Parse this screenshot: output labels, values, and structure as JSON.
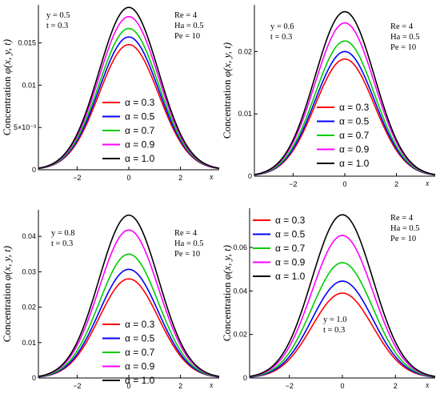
{
  "chart_data": [
    {
      "type": "line",
      "ylabel_text": "Concentration",
      "ylabel_func": "φ(x, y, t)",
      "xlabel": "x",
      "xlim": [
        -3.5,
        3.5
      ],
      "ylim": [
        0,
        0.0195
      ],
      "xticks": [
        -2,
        0,
        2
      ],
      "xtick_labels": [
        "−2",
        "0",
        "2"
      ],
      "yticks": [
        0,
        0.005,
        0.01,
        0.015
      ],
      "ytick_labels": [
        "0",
        "5×10⁻³",
        "0.01",
        "0.015"
      ],
      "params_left": [
        "y = 0.5",
        "t = 0.3"
      ],
      "params_right": [
        "Re = 4",
        "Ha = 0.5",
        "Pe = 10"
      ],
      "legend_position": "lower-center",
      "series": [
        {
          "name": "α = 0.3",
          "peak": 0.0148,
          "color": "#ff0000"
        },
        {
          "name": "α = 0.5",
          "peak": 0.0157,
          "color": "#0000ff"
        },
        {
          "name": "α = 0.7",
          "peak": 0.0167,
          "color": "#00cc00"
        },
        {
          "name": "α = 0.9",
          "peak": 0.0181,
          "color": "#ff00ff"
        },
        {
          "name": "α = 1.0",
          "peak": 0.0192,
          "color": "#000000"
        }
      ]
    },
    {
      "type": "line",
      "ylabel_text": "Concentration",
      "ylabel_func": "φ(x, y, t)",
      "xlabel": "x",
      "xlim": [
        -3.5,
        3.5
      ],
      "ylim": [
        0,
        0.0275
      ],
      "xticks": [
        -2,
        0,
        2
      ],
      "xtick_labels": [
        "−2",
        "0",
        "2"
      ],
      "yticks": [
        0,
        0.01,
        0.02
      ],
      "ytick_labels": [
        "0",
        "0.01",
        "0.02"
      ],
      "params_left": [
        "y = 0.6",
        "t = 0.3"
      ],
      "params_right": [
        "Re = 4",
        "Ha = 0.5",
        "Pe = 10"
      ],
      "legend_position": "lower-center",
      "series": [
        {
          "name": "α = 0.3",
          "peak": 0.0188,
          "color": "#ff0000"
        },
        {
          "name": "α = 0.5",
          "peak": 0.02,
          "color": "#0000ff"
        },
        {
          "name": "α = 0.7",
          "peak": 0.0217,
          "color": "#00cc00"
        },
        {
          "name": "α = 0.9",
          "peak": 0.0246,
          "color": "#ff00ff"
        },
        {
          "name": "α = 1.0",
          "peak": 0.0264,
          "color": "#000000"
        }
      ]
    },
    {
      "type": "line",
      "ylabel_text": "Concentration",
      "ylabel_func": "φ(x, y, t)",
      "xlabel": "x",
      "xlim": [
        -3.5,
        3.5
      ],
      "ylim": [
        0,
        0.0475
      ],
      "xticks": [
        -2,
        0,
        2
      ],
      "xtick_labels": [
        "−2",
        "0",
        "2"
      ],
      "yticks": [
        0,
        0.01,
        0.02,
        0.03,
        0.04
      ],
      "ytick_labels": [
        "0",
        "0.01",
        "0.02",
        "0.03",
        "0.04"
      ],
      "params_left": [
        "y = 0.8",
        "t = 0.3"
      ],
      "params_right": [
        "Re = 4",
        "Ha = 0.5",
        "Pe = 10"
      ],
      "legend_position": "lower-center",
      "series": [
        {
          "name": "α = 0.3",
          "peak": 0.028,
          "color": "#ff0000"
        },
        {
          "name": "α = 0.5",
          "peak": 0.0307,
          "color": "#0000ff"
        },
        {
          "name": "α = 0.7",
          "peak": 0.035,
          "color": "#00cc00"
        },
        {
          "name": "α = 0.9",
          "peak": 0.0418,
          "color": "#ff00ff"
        },
        {
          "name": "α = 1.0",
          "peak": 0.046,
          "color": "#000000"
        }
      ]
    },
    {
      "type": "line",
      "ylabel_text": "Concentration",
      "ylabel_func": "φ(x, y, t)",
      "xlabel": "x",
      "xlim": [
        -3.5,
        3.5
      ],
      "ylim": [
        0,
        0.078
      ],
      "xticks": [
        -2,
        0,
        2
      ],
      "xtick_labels": [
        "−2",
        "0",
        "2"
      ],
      "yticks": [
        0,
        0.02,
        0.04,
        0.06
      ],
      "ytick_labels": [
        "0",
        "0.02",
        "0.04",
        "0.06"
      ],
      "params_left": [
        "y = 1.0",
        "t = 0.3"
      ],
      "params_right": [
        "Re = 4",
        "Ha = 0.5",
        "Pe = 10"
      ],
      "legend_position": "upper-left",
      "series": [
        {
          "name": "α = 0.3",
          "peak": 0.039,
          "color": "#ff0000"
        },
        {
          "name": "α = 0.5",
          "peak": 0.0445,
          "color": "#0000ff"
        },
        {
          "name": "α = 0.7",
          "peak": 0.053,
          "color": "#00cc00"
        },
        {
          "name": "α = 0.9",
          "peak": 0.0655,
          "color": "#ff00ff"
        },
        {
          "name": "α = 1.0",
          "peak": 0.075,
          "color": "#000000"
        }
      ]
    }
  ]
}
